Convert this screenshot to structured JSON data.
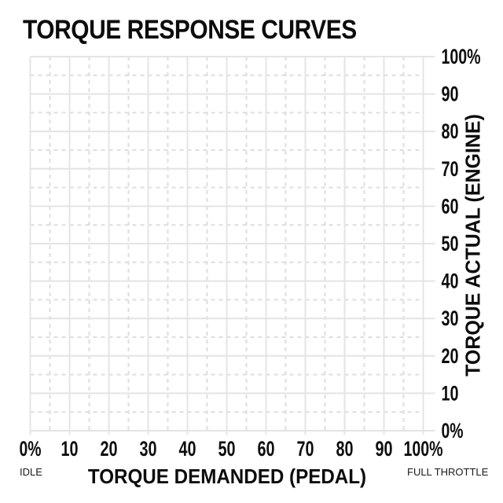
{
  "chart_data": {
    "type": "line",
    "title": "TORQUE RESPONSE CURVES",
    "xlabel": "TORQUE DEMANDED (PEDAL)",
    "ylabel": "TORQUE ACTUAL (ENGINE)",
    "x_ticks": [
      "0%",
      "10",
      "20",
      "30",
      "40",
      "50",
      "60",
      "70",
      "80",
      "90",
      "100%"
    ],
    "y_ticks": [
      "100%",
      "90",
      "80",
      "70",
      "60",
      "50",
      "40",
      "30",
      "20",
      "10",
      "0%"
    ],
    "xlim": [
      0,
      100
    ],
    "ylim": [
      0,
      100
    ],
    "x_annotation_left": "IDLE",
    "x_annotation_right": "FULL THROTTLE",
    "grid": {
      "major_interval": 10,
      "minor_interval": 5,
      "major_style": "solid",
      "minor_style": "dashed",
      "on": true
    },
    "legend": "none",
    "series": []
  },
  "colors": {
    "background": "#ffffff",
    "text": "#0c0c0c",
    "grid_major": "#e4e4e4",
    "grid_minor": "#dedede"
  }
}
